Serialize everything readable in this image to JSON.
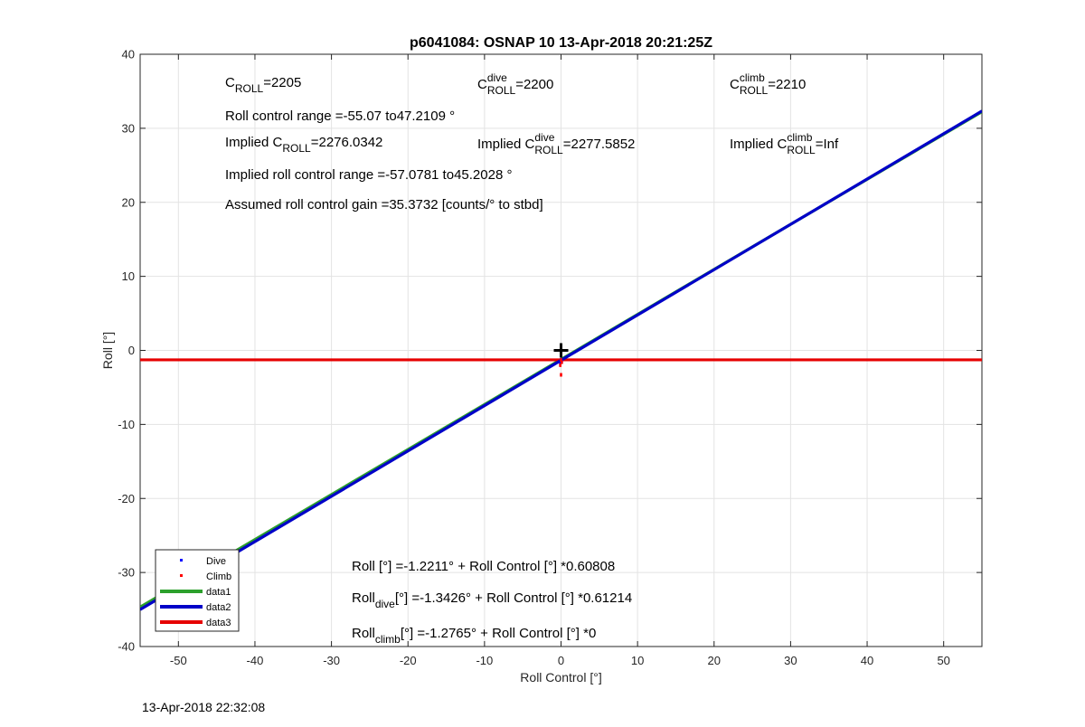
{
  "chart_data": {
    "type": "line",
    "title": "p6041084: OSNAP 10 13-Apr-2018 20:21:25Z",
    "xlabel": "Roll Control [°]",
    "ylabel": "Roll [°]",
    "xlim": [
      -55,
      55
    ],
    "ylim": [
      -40,
      40
    ],
    "xticks": [
      -50,
      -40,
      -30,
      -20,
      -10,
      0,
      10,
      20,
      30,
      40,
      50
    ],
    "yticks": [
      -40,
      -30,
      -20,
      -10,
      0,
      10,
      20,
      30,
      40
    ],
    "grid": true,
    "legend_position": "bottom-left",
    "series": [
      {
        "name": "Dive",
        "kind": "points",
        "color": "#0000ff",
        "x": [
          0.0,
          -0.1,
          0.1
        ],
        "y": [
          -1.3,
          -1.8,
          -1.5
        ]
      },
      {
        "name": "Climb",
        "kind": "points",
        "color": "#ff0000",
        "x": [
          0.0,
          0.1,
          -0.1,
          0.0
        ],
        "y": [
          -1.3,
          -1.6,
          -2.0,
          -3.3
        ]
      },
      {
        "name": "data1",
        "kind": "line",
        "color": "#2ca02c",
        "x": [
          -55,
          55
        ],
        "y": [
          -34.67,
          32.23
        ]
      },
      {
        "name": "data2",
        "kind": "line",
        "color": "#0000c8",
        "x": [
          -55,
          55
        ],
        "y": [
          -35.01,
          32.33
        ]
      },
      {
        "name": "data3",
        "kind": "line",
        "color": "#e60000",
        "x": [
          -55,
          55
        ],
        "y": [
          -1.2765,
          -1.2765
        ]
      }
    ],
    "marker": {
      "x": 0,
      "y": 0,
      "symbol": "+",
      "color": "#000000"
    },
    "annotations": {
      "c_roll": {
        "base": "C",
        "sub": "ROLL",
        "suffix": "=2205"
      },
      "c_roll_dive": {
        "base": "C",
        "sup": "dive",
        "sub": "ROLL",
        "suffix": " =2200"
      },
      "c_roll_climb": {
        "base": "C",
        "sup": "climb",
        "sub": "ROLL",
        "suffix": " =2210"
      },
      "roll_range": "Roll control range =-55.07 to47.2109 °",
      "implied_c_roll": {
        "prefix": "Implied C",
        "sub": "ROLL",
        "suffix": " =2276.0342"
      },
      "implied_c_roll_dive": {
        "prefix": "Implied C",
        "sup": "dive",
        "sub": "ROLL",
        "suffix": " =2277.5852"
      },
      "implied_c_roll_climb": {
        "prefix": "Implied C",
        "sup": "climb",
        "sub": "ROLL",
        "suffix": " =Inf"
      },
      "implied_range": "Implied roll control range =-57.0781 to45.2028 °",
      "gain": "Assumed roll control gain =35.3732 [counts/° to stbd]",
      "fit_all": "Roll [°] =-1.2211° + Roll Control [°] *0.60808",
      "fit_dive": {
        "base": "Roll",
        "sub": "dive",
        "suffix": " [°] =-1.3426° + Roll Control [°] *0.61214"
      },
      "fit_climb": {
        "base": "Roll",
        "sub": "climb",
        "suffix": " [°] =-1.2765° + Roll Control [°] *0"
      }
    }
  },
  "footer": {
    "timestamp": "13-Apr-2018 22:32:08"
  }
}
